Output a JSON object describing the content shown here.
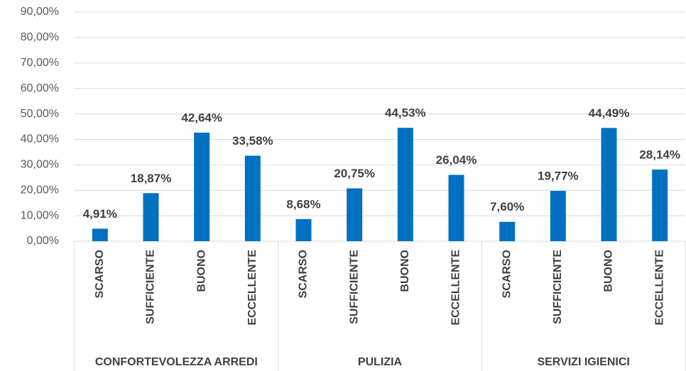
{
  "chart_data": {
    "type": "bar",
    "color": "#0070c0",
    "grid": true,
    "ylim": [
      0,
      90
    ],
    "yticks": [
      {
        "value": 0,
        "label": "0,00%"
      },
      {
        "value": 10,
        "label": "10,00%"
      },
      {
        "value": 20,
        "label": "20,00%"
      },
      {
        "value": 30,
        "label": "30,00%"
      },
      {
        "value": 40,
        "label": "40,00%"
      },
      {
        "value": 50,
        "label": "50,00%"
      },
      {
        "value": 60,
        "label": "60,00%"
      },
      {
        "value": 70,
        "label": "70,00%"
      },
      {
        "value": 80,
        "label": "80,00%"
      },
      {
        "value": 90,
        "label": "90,00%"
      }
    ],
    "groups": [
      {
        "name": "CONFORTEVOLEZZA ARREDI",
        "categories": [
          "SCARSO",
          "SUFFICIENTE",
          "BUONO",
          "ECCELLENTE"
        ],
        "values": [
          4.91,
          18.87,
          42.64,
          33.58
        ],
        "value_labels": [
          "4,91%",
          "18,87%",
          "42,64%",
          "33,58%"
        ]
      },
      {
        "name": "PULIZIA",
        "categories": [
          "SCARSO",
          "SUFFICIENTE",
          "BUONO",
          "ECCELLENTE"
        ],
        "values": [
          8.68,
          20.75,
          44.53,
          26.04
        ],
        "value_labels": [
          "8,68%",
          "20,75%",
          "44,53%",
          "26,04%"
        ]
      },
      {
        "name": "SERVIZI IGIENICI",
        "categories": [
          "SCARSO",
          "SUFFICIENTE",
          "BUONO",
          "ECCELLENTE"
        ],
        "values": [
          7.6,
          19.77,
          44.49,
          28.14
        ],
        "value_labels": [
          "7,60%",
          "19,77%",
          "44,49%",
          "28,14%"
        ]
      }
    ]
  }
}
